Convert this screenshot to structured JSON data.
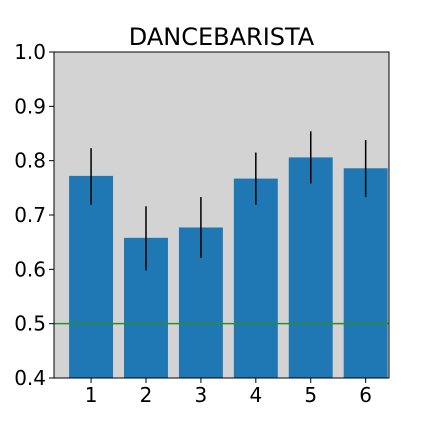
{
  "chart_data": {
    "type": "bar",
    "title": "DANCEBARISTA",
    "xlabel": "",
    "ylabel": "",
    "categories": [
      "1",
      "2",
      "3",
      "4",
      "5",
      "6"
    ],
    "values": [
      0.772,
      0.658,
      0.677,
      0.767,
      0.806,
      0.786
    ],
    "error_low": [
      0.719,
      0.598,
      0.621,
      0.719,
      0.758,
      0.733
    ],
    "error_high": [
      0.823,
      0.716,
      0.733,
      0.815,
      0.854,
      0.838
    ],
    "ylim": [
      0.4,
      1.0
    ],
    "yticks": [
      "0.4",
      "0.5",
      "0.6",
      "0.7",
      "0.8",
      "0.9",
      "1.0"
    ],
    "reference_line": 0.5,
    "grid": false,
    "colors": {
      "bar": "#1f77b4",
      "error_bar": "#000000",
      "reference_line": "#2e8b2e",
      "plot_background": "#d3d3d3",
      "axis": "#000000"
    }
  }
}
